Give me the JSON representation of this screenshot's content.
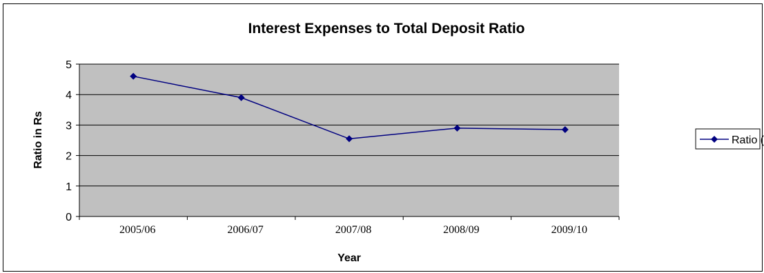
{
  "chart_data": {
    "type": "line",
    "title": "Interest Expenses to Total Deposit Ratio",
    "xlabel": "Year",
    "ylabel": "Ratio in Rs",
    "categories": [
      "2005/06",
      "2006/07",
      "2007/08",
      "2008/09",
      "2009/10"
    ],
    "series": [
      {
        "name": "Ratio (%)",
        "values": [
          4.6,
          3.9,
          2.55,
          2.9,
          2.85
        ]
      }
    ],
    "ylim": [
      0,
      5
    ],
    "yticks": [
      0,
      1,
      2,
      3,
      4,
      5
    ],
    "grid": true,
    "legend_position": "right",
    "colors": {
      "series": "#000080",
      "plot_background": "#c0c0c0",
      "gridline": "#000000"
    }
  }
}
